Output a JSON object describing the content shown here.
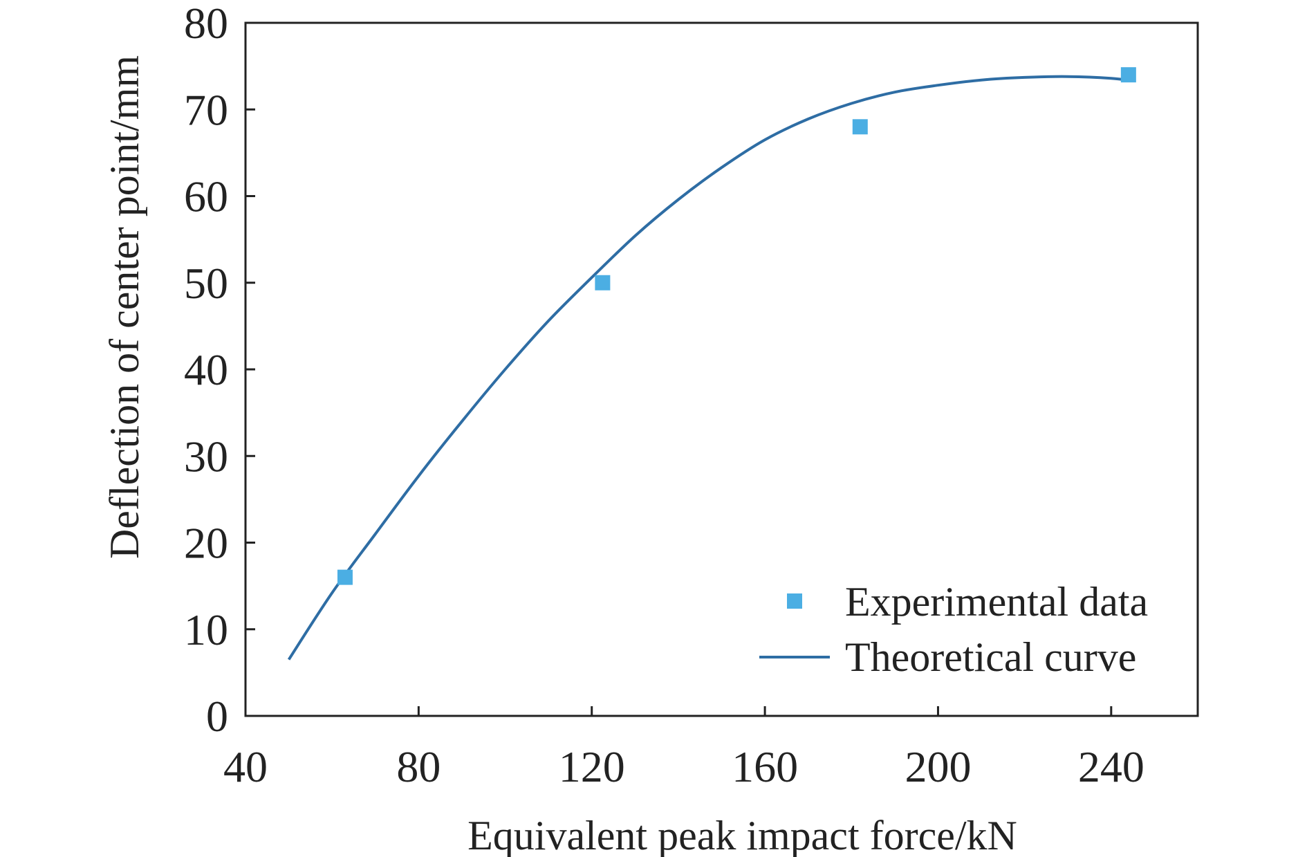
{
  "chart_data": {
    "type": "scatter",
    "title": "",
    "xlabel": "Equivalent peak impact force/kN",
    "ylabel": "Deflection of center point/mm",
    "xlim": [
      40,
      260
    ],
    "ylim": [
      0,
      80
    ],
    "xticks": [
      40,
      80,
      120,
      160,
      200,
      240
    ],
    "yticks": [
      0,
      10,
      20,
      30,
      40,
      50,
      60,
      70,
      80
    ],
    "grid": false,
    "legend_position": "bottom-right",
    "series": [
      {
        "name": "Experimental data",
        "kind": "scatter",
        "marker": "square",
        "color": "#4BAEE3",
        "x": [
          63,
          122.5,
          182,
          244
        ],
        "y": [
          16,
          50,
          68,
          74
        ]
      },
      {
        "name": "Theoretical curve",
        "kind": "line",
        "color": "#2E6DA4",
        "x": [
          50,
          60,
          70,
          80,
          90,
          100,
          110,
          120,
          130,
          140,
          150,
          160,
          170,
          180,
          190,
          200,
          210,
          220,
          230,
          240,
          245
        ],
        "y": [
          6.5,
          14.2,
          21.0,
          27.7,
          34.0,
          40.0,
          45.6,
          50.6,
          55.4,
          59.6,
          63.3,
          66.5,
          68.9,
          70.7,
          72.0,
          72.8,
          73.4,
          73.7,
          73.8,
          73.6,
          73.3
        ]
      }
    ]
  },
  "colors": {
    "axis": "#222222",
    "experimental": "#4BAEE3",
    "theoretical": "#2E6DA4"
  }
}
